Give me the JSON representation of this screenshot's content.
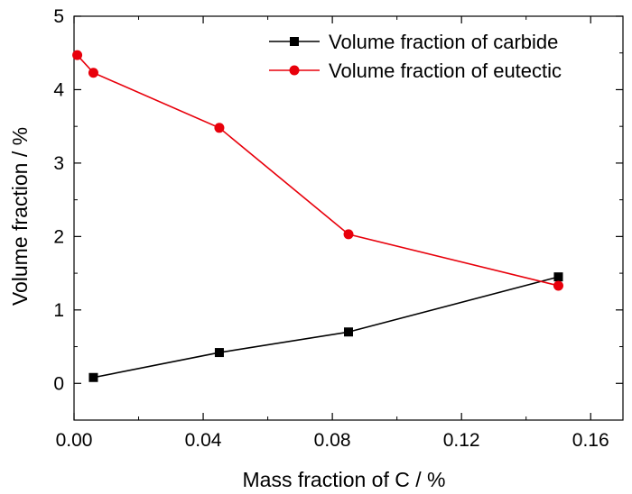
{
  "chart_data": {
    "type": "line",
    "title": "",
    "xlabel": "Mass fraction of C / %",
    "ylabel": "Volume fraction / %",
    "xlim": [
      0,
      0.17
    ],
    "ylim": [
      -0.5,
      5
    ],
    "xticks": [
      0.0,
      0.04,
      0.08,
      0.12,
      0.16
    ],
    "xtick_labels": [
      "0.00",
      "0.04",
      "0.08",
      "0.12",
      "0.16"
    ],
    "yticks": [
      0,
      1,
      2,
      3,
      4,
      5
    ],
    "ytick_labels": [
      "0",
      "1",
      "2",
      "3",
      "4",
      "5"
    ],
    "grid": false,
    "legend_position": "top-right",
    "series": [
      {
        "name": "Volume fraction of carbide",
        "marker": "square",
        "color": "#000000",
        "x": [
          0.006,
          0.045,
          0.085,
          0.15
        ],
        "y": [
          0.08,
          0.42,
          0.7,
          1.45
        ]
      },
      {
        "name": "Volume fraction of eutectic",
        "marker": "circle",
        "color": "#e8000b",
        "x": [
          0.001,
          0.006,
          0.045,
          0.085,
          0.15
        ],
        "y": [
          4.47,
          4.23,
          3.48,
          2.03,
          1.33
        ]
      }
    ]
  }
}
